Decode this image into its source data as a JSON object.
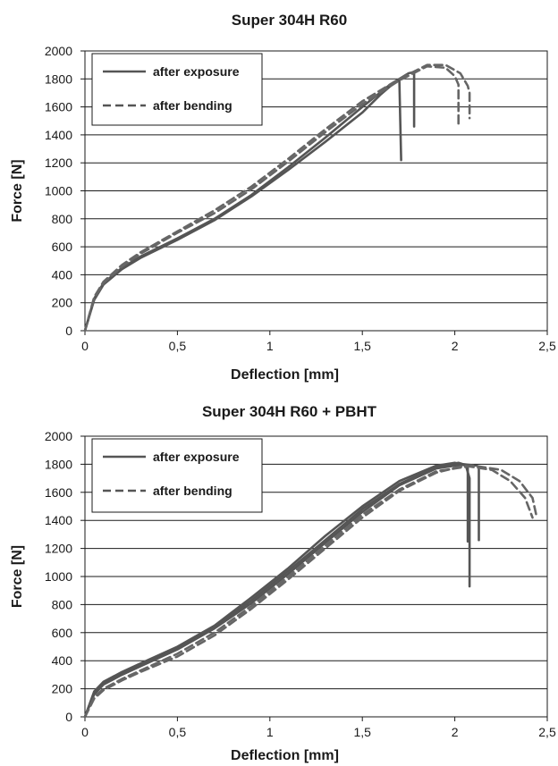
{
  "chart_data": [
    {
      "type": "line",
      "title": "Super 304H R60",
      "xlabel": "Deflection [mm]",
      "ylabel": "Force [N]",
      "xlim": [
        0,
        2.5
      ],
      "ylim": [
        0,
        2000
      ],
      "grid": "horizontal",
      "legend_position": "top-left",
      "x_ticks": [
        "0",
        "0,5",
        "1",
        "1,5",
        "2",
        "2,5"
      ],
      "y_ticks": [
        "0",
        "200",
        "400",
        "600",
        "800",
        "1000",
        "1200",
        "1400",
        "1600",
        "1800",
        "2000"
      ],
      "legend": [
        {
          "label": "after exposure",
          "style": "solid"
        },
        {
          "label": "after bending",
          "style": "dashed"
        }
      ],
      "series": [
        {
          "legend": 0,
          "style": "solid",
          "color": "#555555",
          "x": [
            0,
            0.05,
            0.1,
            0.2,
            0.3,
            0.5,
            0.7,
            0.9,
            1.1,
            1.3,
            1.5,
            1.6,
            1.67,
            1.7,
            1.705,
            1.71
          ],
          "y": [
            0,
            220,
            330,
            440,
            520,
            650,
            790,
            960,
            1150,
            1350,
            1560,
            1690,
            1770,
            1790,
            1500,
            1220
          ]
        },
        {
          "legend": 0,
          "style": "solid",
          "color": "#555555",
          "x": [
            0,
            0.05,
            0.1,
            0.2,
            0.3,
            0.5,
            0.7,
            0.9,
            1.1,
            1.3,
            1.5,
            1.65,
            1.75,
            1.78,
            1.78
          ],
          "y": [
            0,
            230,
            340,
            450,
            530,
            660,
            800,
            970,
            1170,
            1380,
            1600,
            1760,
            1840,
            1850,
            1460
          ]
        },
        {
          "legend": 1,
          "style": "dashed",
          "color": "#666666",
          "x": [
            0,
            0.05,
            0.1,
            0.2,
            0.3,
            0.5,
            0.7,
            0.9,
            1.1,
            1.3,
            1.5,
            1.7,
            1.85,
            1.95,
            2.0,
            2.02,
            2.02
          ],
          "y": [
            0,
            230,
            340,
            460,
            550,
            700,
            840,
            1010,
            1210,
            1420,
            1620,
            1790,
            1890,
            1880,
            1820,
            1760,
            1480
          ]
        },
        {
          "legend": 1,
          "style": "dashed",
          "color": "#666666",
          "x": [
            0,
            0.05,
            0.1,
            0.2,
            0.3,
            0.5,
            0.7,
            0.9,
            1.1,
            1.3,
            1.5,
            1.7,
            1.85,
            1.95,
            2.03,
            2.07,
            2.08,
            2.08
          ],
          "y": [
            0,
            240,
            350,
            470,
            560,
            710,
            860,
            1030,
            1230,
            1440,
            1640,
            1800,
            1900,
            1900,
            1840,
            1750,
            1700,
            1520
          ]
        }
      ]
    },
    {
      "type": "line",
      "title": "Super 304H R60 + PBHT",
      "xlabel": "Deflection [mm]",
      "ylabel": "Force [N]",
      "xlim": [
        0,
        2.5
      ],
      "ylim": [
        0,
        2000
      ],
      "grid": "horizontal",
      "legend_position": "top-left",
      "x_ticks": [
        "0",
        "0,5",
        "1",
        "1,5",
        "2",
        "2,5"
      ],
      "y_ticks": [
        "0",
        "200",
        "400",
        "600",
        "800",
        "1000",
        "1200",
        "1400",
        "1600",
        "1800",
        "2000"
      ],
      "legend": [
        {
          "label": "after exposure",
          "style": "solid"
        },
        {
          "label": "after bending",
          "style": "dashed"
        }
      ],
      "series": [
        {
          "legend": 0,
          "style": "solid",
          "color": "#555555",
          "x": [
            0,
            0.05,
            0.1,
            0.2,
            0.3,
            0.5,
            0.7,
            0.9,
            1.1,
            1.3,
            1.5,
            1.7,
            1.9,
            2.0,
            2.06,
            2.08,
            2.08
          ],
          "y": [
            0,
            180,
            250,
            320,
            380,
            500,
            650,
            850,
            1060,
            1290,
            1500,
            1680,
            1790,
            1810,
            1790,
            1700,
            930
          ]
        },
        {
          "legend": 0,
          "style": "solid",
          "color": "#555555",
          "x": [
            0,
            0.05,
            0.1,
            0.2,
            0.3,
            0.5,
            0.7,
            0.9,
            1.1,
            1.3,
            1.5,
            1.7,
            1.9,
            2.02,
            2.07,
            2.07
          ],
          "y": [
            0,
            170,
            240,
            310,
            370,
            490,
            640,
            830,
            1040,
            1260,
            1480,
            1660,
            1780,
            1810,
            1790,
            1250
          ]
        },
        {
          "legend": 0,
          "style": "solid",
          "color": "#555555",
          "x": [
            0,
            0.05,
            0.1,
            0.2,
            0.3,
            0.5,
            0.7,
            0.9,
            1.1,
            1.3,
            1.5,
            1.7,
            1.9,
            2.05,
            2.12,
            2.13,
            2.13
          ],
          "y": [
            0,
            160,
            230,
            300,
            360,
            480,
            630,
            810,
            1020,
            1240,
            1460,
            1650,
            1770,
            1800,
            1790,
            1780,
            1260
          ]
        },
        {
          "legend": 1,
          "style": "dashed",
          "color": "#666666",
          "x": [
            0,
            0.05,
            0.1,
            0.2,
            0.3,
            0.5,
            0.7,
            0.9,
            1.1,
            1.3,
            1.5,
            1.7,
            1.9,
            2.05,
            2.2,
            2.3,
            2.38,
            2.42
          ],
          "y": [
            0,
            130,
            190,
            260,
            320,
            430,
            580,
            770,
            980,
            1200,
            1420,
            1610,
            1740,
            1790,
            1760,
            1680,
            1560,
            1420
          ]
        },
        {
          "legend": 1,
          "style": "dashed",
          "color": "#666666",
          "x": [
            0,
            0.05,
            0.1,
            0.2,
            0.3,
            0.5,
            0.7,
            0.9,
            1.1,
            1.3,
            1.5,
            1.7,
            1.9,
            2.1,
            2.25,
            2.35,
            2.42,
            2.44
          ],
          "y": [
            0,
            140,
            200,
            270,
            330,
            450,
            600,
            790,
            1000,
            1220,
            1440,
            1620,
            1750,
            1790,
            1760,
            1680,
            1560,
            1440
          ]
        }
      ]
    }
  ]
}
